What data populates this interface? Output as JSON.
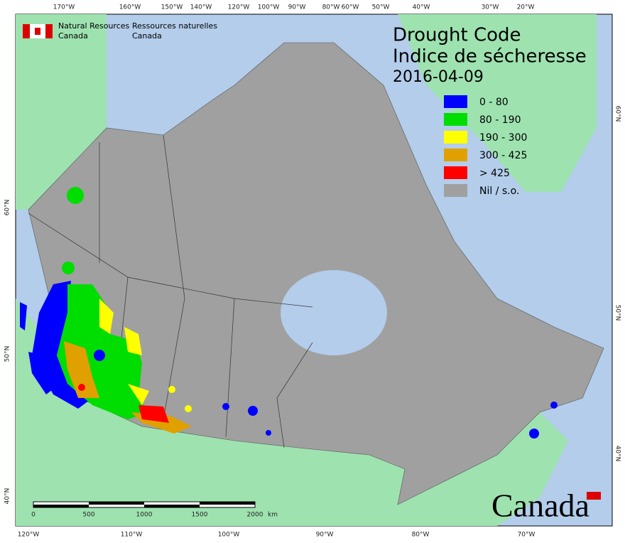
{
  "header": {
    "agency_en": [
      "Natural Resources",
      "Canada"
    ],
    "agency_fr": [
      "Ressources naturelles",
      "Canada"
    ]
  },
  "title": {
    "en": "Drought Code",
    "fr": "Indice de sécheresse",
    "date": "2016-04-09"
  },
  "legend": [
    {
      "label": "0 - 80",
      "color": "#0000ff"
    },
    {
      "label": "80 - 190",
      "color": "#00dd00"
    },
    {
      "label": "190 - 300",
      "color": "#ffff00"
    },
    {
      "label": "300 - 425",
      "color": "#e0a000"
    },
    {
      "label": "> 425",
      "color": "#ff0000"
    },
    {
      "label": "Nil / s.o.",
      "color": "#a0a0a0"
    }
  ],
  "graticule": {
    "top": [
      "170°W",
      "160°W",
      "150°W",
      "140°W",
      "120°W",
      "100°W",
      "90°W",
      "80°W",
      "60°W",
      "50°W",
      "40°W",
      "30°W",
      "20°W"
    ],
    "bottom": [
      "120°W",
      "110°W",
      "100°W",
      "90°W",
      "80°W",
      "70°W"
    ],
    "left": [
      "60°N",
      "50°N",
      "40°N"
    ],
    "right": [
      "60°N",
      "50°N",
      "40°N"
    ]
  },
  "scale_bar": [
    "0",
    "500",
    "1000",
    "1500",
    "2000",
    "km"
  ],
  "wordmark": "Canada"
}
